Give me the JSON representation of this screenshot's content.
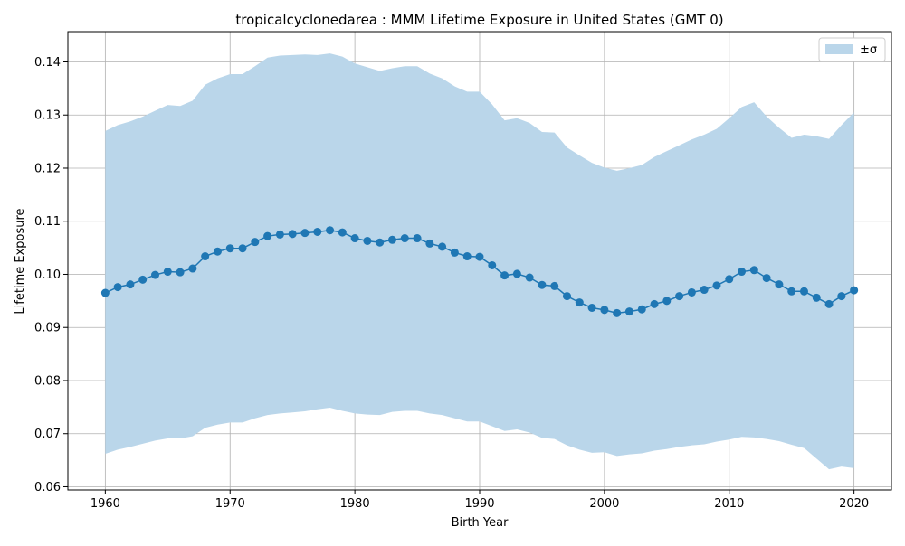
{
  "chart_data": {
    "type": "line",
    "title": "tropicalcyclonedarea : MMM Lifetime Exposure in United States (GMT 0)",
    "xlabel": "Birth Year",
    "ylabel": "Lifetime Exposure",
    "xlim": [
      1957,
      2023
    ],
    "ylim": [
      0.0594,
      0.1457
    ],
    "xticks": [
      1960,
      1970,
      1980,
      1990,
      2000,
      2010,
      2020
    ],
    "yticks": [
      0.06,
      0.07,
      0.08,
      0.09,
      0.1,
      0.11,
      0.12,
      0.13,
      0.14
    ],
    "ytick_labels": [
      "0.06",
      "0.07",
      "0.08",
      "0.09",
      "0.10",
      "0.11",
      "0.12",
      "0.13",
      "0.14"
    ],
    "grid": true,
    "legend": {
      "position": "upper right",
      "entries": [
        "±σ"
      ]
    },
    "colors": {
      "line": "#1f77b4",
      "band": "#bad6ea",
      "grid": "#b0b0b0"
    },
    "x": [
      1960,
      1961,
      1962,
      1963,
      1964,
      1965,
      1966,
      1967,
      1968,
      1969,
      1970,
      1971,
      1972,
      1973,
      1974,
      1975,
      1976,
      1977,
      1978,
      1979,
      1980,
      1981,
      1982,
      1983,
      1984,
      1985,
      1986,
      1987,
      1988,
      1989,
      1990,
      1991,
      1992,
      1993,
      1994,
      1995,
      1996,
      1997,
      1998,
      1999,
      2000,
      2001,
      2002,
      2003,
      2004,
      2005,
      2006,
      2007,
      2008,
      2009,
      2010,
      2011,
      2012,
      2013,
      2014,
      2015,
      2016,
      2017,
      2018,
      2019,
      2020
    ],
    "series": [
      {
        "kind": "mean",
        "values": [
          0.0965,
          0.0976,
          0.0981,
          0.099,
          0.0999,
          0.1005,
          0.1004,
          0.1011,
          0.1034,
          0.1043,
          0.1049,
          0.1049,
          0.1061,
          0.1072,
          0.1075,
          0.1076,
          0.1078,
          0.108,
          0.1083,
          0.1079,
          0.1068,
          0.1063,
          0.106,
          0.1065,
          0.1068,
          0.1068,
          0.1058,
          0.1052,
          0.1041,
          0.1034,
          0.1033,
          0.1017,
          0.0998,
          0.1001,
          0.0994,
          0.098,
          0.0978,
          0.0959,
          0.0947,
          0.0937,
          0.0933,
          0.0927,
          0.093,
          0.0934,
          0.0944,
          0.095,
          0.0959,
          0.0966,
          0.0971,
          0.0979,
          0.0991,
          0.1005,
          0.1008,
          0.0993,
          0.0981,
          0.0968,
          0.0968,
          0.0956,
          0.0944,
          0.0959,
          0.097
        ]
      },
      {
        "name": "±σ",
        "kind": "band",
        "upper": [
          0.127,
          0.1281,
          0.1288,
          0.1297,
          0.1308,
          0.1319,
          0.1317,
          0.1327,
          0.1357,
          0.1369,
          0.1377,
          0.1377,
          0.1392,
          0.1408,
          0.1412,
          0.1413,
          0.1414,
          0.1413,
          0.1416,
          0.141,
          0.1397,
          0.139,
          0.1383,
          0.1388,
          0.1392,
          0.1392,
          0.1378,
          0.1369,
          0.1354,
          0.1344,
          0.1344,
          0.132,
          0.129,
          0.1294,
          0.1285,
          0.1268,
          0.1267,
          0.1239,
          0.1224,
          0.121,
          0.1201,
          0.1195,
          0.12,
          0.1206,
          0.1221,
          0.1232,
          0.1243,
          0.1254,
          0.1263,
          0.1274,
          0.1294,
          0.1315,
          0.1324,
          0.1297,
          0.1276,
          0.1257,
          0.1263,
          0.126,
          0.1255,
          0.1281,
          0.1305
        ],
        "lower": [
          0.0662,
          0.067,
          0.0675,
          0.0681,
          0.0687,
          0.0691,
          0.0691,
          0.0695,
          0.0711,
          0.0717,
          0.0721,
          0.0721,
          0.0729,
          0.0735,
          0.0738,
          0.074,
          0.0742,
          0.0746,
          0.0749,
          0.0743,
          0.0738,
          0.0736,
          0.0735,
          0.0741,
          0.0743,
          0.0743,
          0.0738,
          0.0735,
          0.0729,
          0.0723,
          0.0723,
          0.0714,
          0.0705,
          0.0708,
          0.0702,
          0.0692,
          0.069,
          0.0678,
          0.067,
          0.0664,
          0.0665,
          0.0658,
          0.0661,
          0.0663,
          0.0668,
          0.0671,
          0.0675,
          0.0678,
          0.068,
          0.0685,
          0.0689,
          0.0694,
          0.0693,
          0.069,
          0.0686,
          0.0679,
          0.0673,
          0.0653,
          0.0633,
          0.0638,
          0.0635
        ]
      }
    ]
  }
}
